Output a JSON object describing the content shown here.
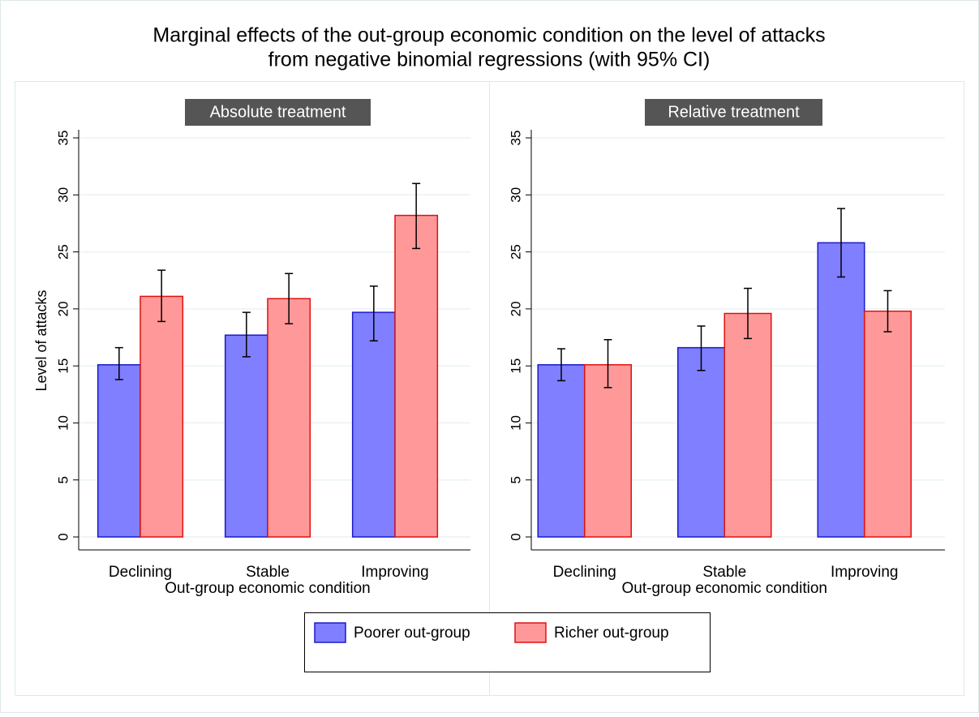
{
  "title": [
    "Marginal effects of the out-group economic condition on the level of attacks",
    "from negative binomial regressions (with 95% CI)"
  ],
  "chart_data": [
    {
      "type": "bar",
      "title": "Absolute treatment",
      "xlabel": "Out-group economic condition",
      "ylabel": "Level of attacks",
      "categories": [
        "Declining",
        "Stable",
        "Improving"
      ],
      "series": [
        {
          "name": "Poorer out-group",
          "color": "#7f7fff",
          "edgecolor": "#1a1acc",
          "values": [
            15.1,
            17.7,
            19.7
          ],
          "lower": [
            13.8,
            15.8,
            17.2
          ],
          "upper": [
            16.6,
            19.7,
            22.0
          ]
        },
        {
          "name": "Richer out-group",
          "color": "#ff9999",
          "edgecolor": "#e01010",
          "values": [
            21.1,
            20.9,
            28.2
          ],
          "lower": [
            18.9,
            18.7,
            25.3
          ],
          "upper": [
            23.4,
            23.1,
            31.0
          ]
        }
      ],
      "ylim": [
        0,
        35
      ],
      "yticks": [
        0,
        5,
        10,
        15,
        20,
        25,
        30,
        35
      ],
      "grid": true
    },
    {
      "type": "bar",
      "title": "Relative treatment",
      "xlabel": "Out-group economic condition",
      "categories": [
        "Declining",
        "Stable",
        "Improving"
      ],
      "series": [
        {
          "color": "#7f7fff",
          "edgecolor": "#1a1acc",
          "values": [
            15.1,
            16.6,
            25.8
          ],
          "lower": [
            13.7,
            14.6,
            22.8
          ],
          "upper": [
            16.5,
            18.5,
            28.8
          ]
        },
        {
          "color": "#ff9999",
          "edgecolor": "#e01010",
          "values": [
            15.1,
            19.6,
            19.8
          ],
          "lower": [
            13.1,
            17.4,
            18.0
          ],
          "upper": [
            17.3,
            21.8,
            21.6
          ]
        }
      ],
      "ylim": [
        0,
        35
      ],
      "yticks": [
        0,
        5,
        10,
        15,
        20,
        25,
        30,
        35
      ],
      "grid": true
    }
  ]
}
